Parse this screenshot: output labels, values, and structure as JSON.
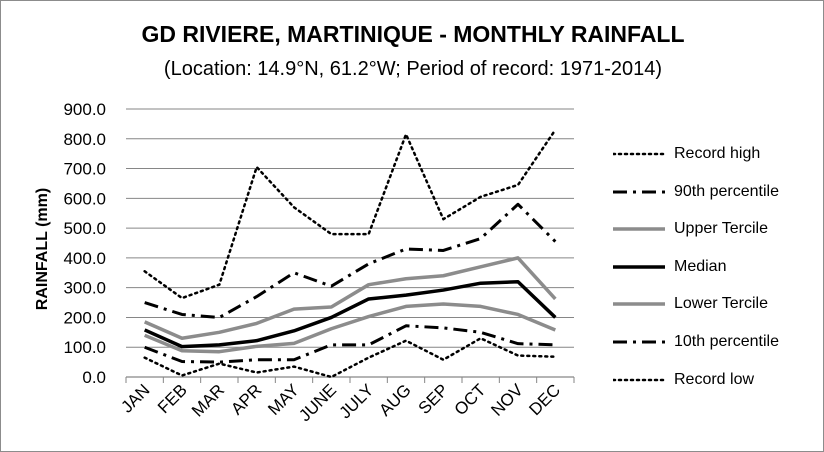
{
  "chart_data": {
    "type": "line",
    "title": "GD RIVIERE, MARTINIQUE - MONTHLY RAINFALL",
    "subtitle": "(Location: 14.9°N, 61.2°W; Period of record: 1971-2014)",
    "xlabel": "",
    "ylabel": "RAINFALL (mm)",
    "ylim": [
      0,
      900
    ],
    "ytick_labels": [
      "0.0",
      "100.0",
      "200.0",
      "300.0",
      "400.0",
      "500.0",
      "600.0",
      "700.0",
      "800.0",
      "900.0"
    ],
    "categories": [
      "JAN",
      "FEB",
      "MAR",
      "APR",
      "MAY",
      "JUNE",
      "JULY",
      "AUG",
      "SEP",
      "OCT",
      "NOV",
      "DEC"
    ],
    "grid": "horizontal",
    "legend_position": "right",
    "series": [
      {
        "name": "Record high",
        "style": "dotted",
        "color": "#000000",
        "values": [
          355,
          265,
          310,
          705,
          570,
          480,
          480,
          815,
          530,
          605,
          645,
          830
        ]
      },
      {
        "name": "90th percentile",
        "style": "dashdot",
        "color": "#000000",
        "values": [
          250,
          210,
          200,
          270,
          350,
          305,
          380,
          430,
          425,
          465,
          580,
          455
        ]
      },
      {
        "name": "Upper Tercile",
        "style": "solid-gray",
        "color": "#8c8c8c",
        "values": [
          185,
          130,
          150,
          180,
          228,
          235,
          310,
          330,
          340,
          370,
          400,
          262
        ]
      },
      {
        "name": "Median",
        "style": "solid-black",
        "color": "#000000",
        "values": [
          158,
          102,
          108,
          122,
          155,
          200,
          262,
          275,
          292,
          315,
          320,
          200
        ]
      },
      {
        "name": "Lower Tercile",
        "style": "solid-gray",
        "color": "#8c8c8c",
        "values": [
          140,
          88,
          85,
          103,
          113,
          162,
          203,
          237,
          245,
          237,
          210,
          158
        ]
      },
      {
        "name": "10th percentile",
        "style": "dashdot",
        "color": "#000000",
        "values": [
          100,
          52,
          50,
          58,
          58,
          108,
          108,
          172,
          165,
          150,
          112,
          108
        ]
      },
      {
        "name": "Record low",
        "style": "dotted",
        "color": "#000000",
        "values": [
          65,
          5,
          45,
          15,
          35,
          0,
          65,
          122,
          58,
          130,
          72,
          68
        ]
      }
    ]
  }
}
